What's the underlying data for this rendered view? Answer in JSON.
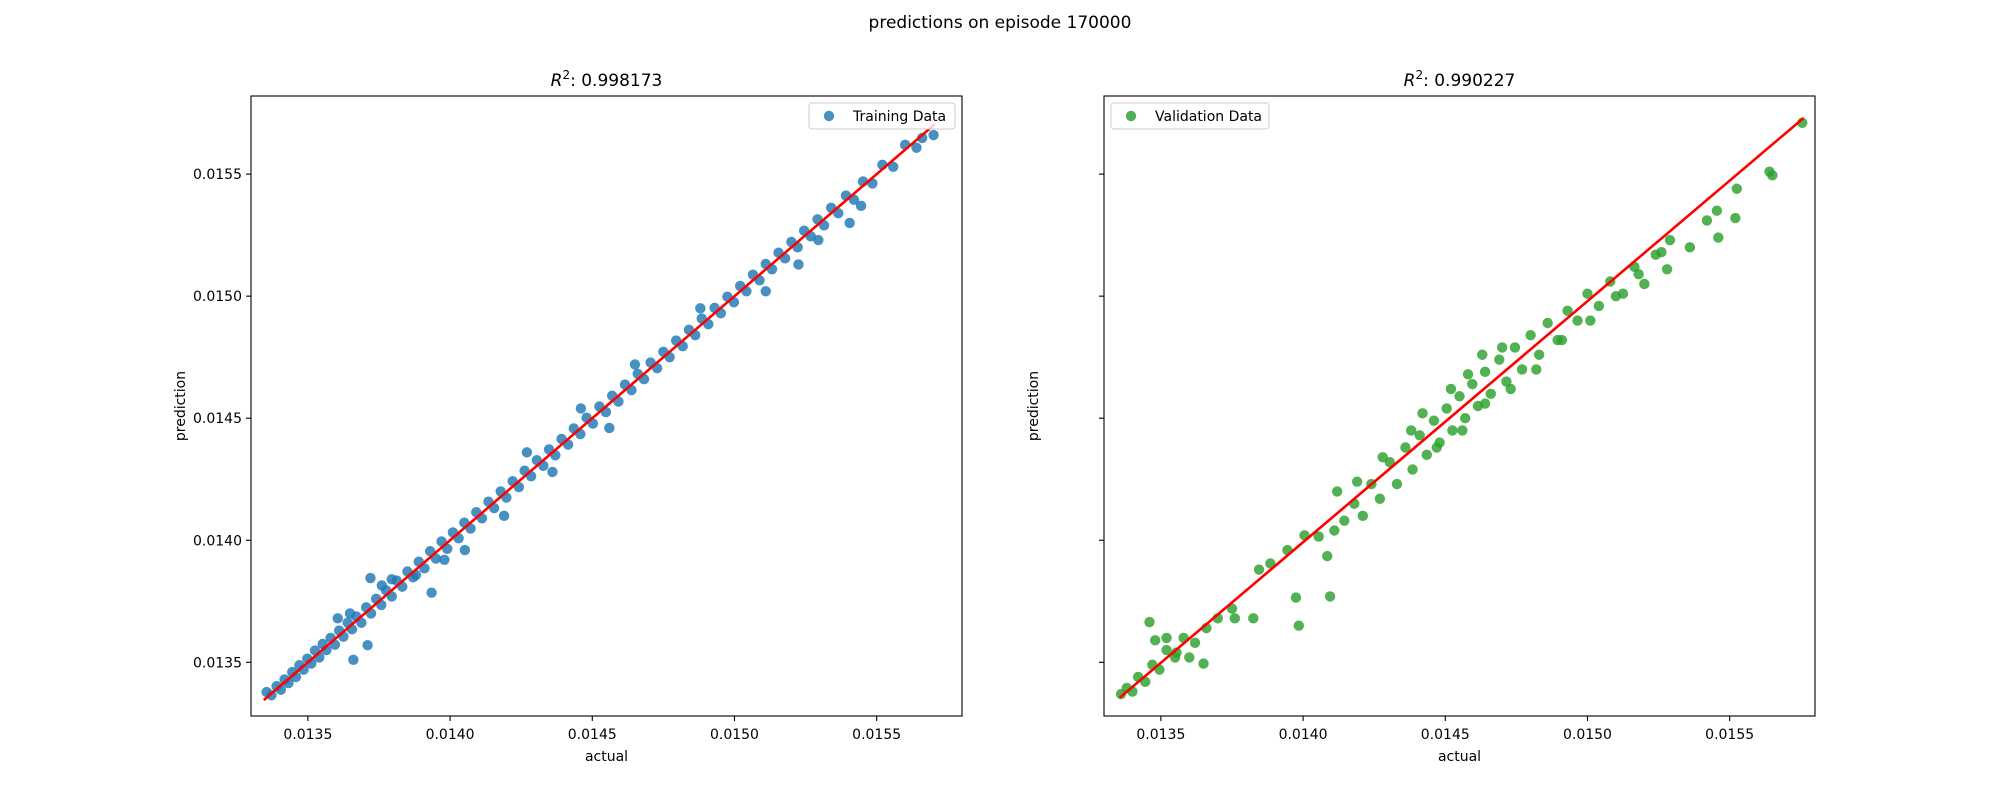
{
  "figure": {
    "suptitle": "predictions on episode 170000"
  },
  "chart_data": [
    {
      "type": "scatter",
      "title_prefix": "R",
      "title_sup": "2",
      "title_value": ": 0.998173",
      "xlabel": "actual",
      "ylabel": "prediction",
      "xlim": [
        0.0133,
        0.0158
      ],
      "ylim": [
        0.01328,
        0.01582
      ],
      "xticks": [
        0.0135,
        0.014,
        0.0145,
        0.015,
        0.0155
      ],
      "xtick_labels": [
        "0.0135",
        "0.0140",
        "0.0145",
        "0.0150",
        "0.0155"
      ],
      "yticks": [
        0.0135,
        0.014,
        0.0145,
        0.015,
        0.0155
      ],
      "ytick_labels": [
        "0.0135",
        "0.0140",
        "0.0145",
        "0.0150",
        "0.0155"
      ],
      "show_ytick_labels": true,
      "legend": {
        "label": "Training Data",
        "position": "top-right"
      },
      "marker_color": "#1f77b4",
      "fit_color": "#ff0000",
      "fit_line": {
        "x": [
          0.013345,
          0.015705
        ],
        "y": [
          0.013345,
          0.015705
        ]
      },
      "points": [
        [
          0.013355,
          0.013378
        ],
        [
          0.013372,
          0.013365
        ],
        [
          0.01339,
          0.013402
        ],
        [
          0.013405,
          0.013388
        ],
        [
          0.013418,
          0.01343
        ],
        [
          0.013432,
          0.013415
        ],
        [
          0.013445,
          0.01346
        ],
        [
          0.013458,
          0.01344
        ],
        [
          0.01347,
          0.013488
        ],
        [
          0.013485,
          0.01347
        ],
        [
          0.013498,
          0.013515
        ],
        [
          0.013512,
          0.013495
        ],
        [
          0.013525,
          0.013548
        ],
        [
          0.01354,
          0.01352
        ],
        [
          0.013552,
          0.013575
        ],
        [
          0.013565,
          0.01355
        ],
        [
          0.01358,
          0.0136
        ],
        [
          0.013595,
          0.013572
        ],
        [
          0.01361,
          0.01363
        ],
        [
          0.013625,
          0.013605
        ],
        [
          0.01364,
          0.013662
        ],
        [
          0.013655,
          0.013635
        ],
        [
          0.01367,
          0.013688
        ],
        [
          0.013688,
          0.013662
        ],
        [
          0.013705,
          0.013725
        ],
        [
          0.013722,
          0.0137
        ],
        [
          0.01374,
          0.01376
        ],
        [
          0.013758,
          0.013735
        ],
        [
          0.013775,
          0.013795
        ],
        [
          0.013795,
          0.01377
        ],
        [
          0.013812,
          0.013835
        ],
        [
          0.013832,
          0.01381
        ],
        [
          0.01385,
          0.013872
        ],
        [
          0.01387,
          0.013848
        ],
        [
          0.01389,
          0.013912
        ],
        [
          0.01391,
          0.013885
        ],
        [
          0.01393,
          0.013955
        ],
        [
          0.01395,
          0.013925
        ],
        [
          0.01397,
          0.013995
        ],
        [
          0.01399,
          0.013965
        ],
        [
          0.01401,
          0.014032
        ],
        [
          0.01403,
          0.014008
        ],
        [
          0.01405,
          0.014072
        ],
        [
          0.014072,
          0.014048
        ],
        [
          0.014092,
          0.014115
        ],
        [
          0.014112,
          0.01409
        ],
        [
          0.014135,
          0.014158
        ],
        [
          0.014155,
          0.014132
        ],
        [
          0.014178,
          0.0142
        ],
        [
          0.014198,
          0.014175
        ],
        [
          0.01422,
          0.014242
        ],
        [
          0.014242,
          0.014218
        ],
        [
          0.014262,
          0.014285
        ],
        [
          0.014285,
          0.014262
        ],
        [
          0.014305,
          0.014328
        ],
        [
          0.014328,
          0.014305
        ],
        [
          0.014348,
          0.014372
        ],
        [
          0.01437,
          0.014348
        ],
        [
          0.014392,
          0.014415
        ],
        [
          0.014415,
          0.014392
        ],
        [
          0.014435,
          0.014458
        ],
        [
          0.014458,
          0.014435
        ],
        [
          0.01448,
          0.014502
        ],
        [
          0.014502,
          0.014478
        ],
        [
          0.014525,
          0.014548
        ],
        [
          0.014548,
          0.014525
        ],
        [
          0.01457,
          0.014592
        ],
        [
          0.014592,
          0.014568
        ],
        [
          0.014615,
          0.014638
        ],
        [
          0.014638,
          0.014615
        ],
        [
          0.01466,
          0.014682
        ],
        [
          0.014682,
          0.01466
        ],
        [
          0.014705,
          0.014728
        ],
        [
          0.014728,
          0.014705
        ],
        [
          0.01475,
          0.014772
        ],
        [
          0.014772,
          0.01475
        ],
        [
          0.014795,
          0.014818
        ],
        [
          0.014818,
          0.014795
        ],
        [
          0.01484,
          0.014862
        ],
        [
          0.014862,
          0.01484
        ],
        [
          0.014885,
          0.014908
        ],
        [
          0.014908,
          0.014885
        ],
        [
          0.01493,
          0.014952
        ],
        [
          0.014952,
          0.01493
        ],
        [
          0.014975,
          0.014998
        ],
        [
          0.014998,
          0.014975
        ],
        [
          0.01502,
          0.015042
        ],
        [
          0.015042,
          0.01502
        ],
        [
          0.015065,
          0.015088
        ],
        [
          0.015088,
          0.015065
        ],
        [
          0.01511,
          0.015132
        ],
        [
          0.015132,
          0.01511
        ],
        [
          0.015155,
          0.015178
        ],
        [
          0.015178,
          0.015155
        ],
        [
          0.0152,
          0.015222
        ],
        [
          0.015222,
          0.0152
        ],
        [
          0.015245,
          0.015268
        ],
        [
          0.015268,
          0.015245
        ],
        [
          0.015292,
          0.015315
        ],
        [
          0.015315,
          0.01529
        ],
        [
          0.01534,
          0.015362
        ],
        [
          0.015365,
          0.01534
        ],
        [
          0.015392,
          0.015412
        ],
        [
          0.01542,
          0.015395
        ],
        [
          0.015452,
          0.01547
        ],
        [
          0.015485,
          0.015462
        ],
        [
          0.01552,
          0.015538
        ],
        [
          0.015558,
          0.01553
        ],
        [
          0.0156,
          0.01562
        ],
        [
          0.01564,
          0.015608
        ],
        [
          0.0157,
          0.01566
        ],
        [
          0.01566,
          0.015648
        ],
        [
          0.01372,
          0.013845
        ],
        [
          0.013795,
          0.01384
        ],
        [
          0.01376,
          0.013815
        ],
        [
          0.01388,
          0.013858
        ],
        [
          0.013935,
          0.013785
        ],
        [
          0.01398,
          0.01392
        ],
        [
          0.014052,
          0.01396
        ],
        [
          0.01366,
          0.01351
        ],
        [
          0.01371,
          0.01357
        ],
        [
          0.013605,
          0.01368
        ],
        [
          0.013648,
          0.0137
        ],
        [
          0.015225,
          0.01513
        ],
        [
          0.015405,
          0.0153
        ],
        [
          0.015445,
          0.01537
        ],
        [
          0.015295,
          0.01523
        ],
        [
          0.01511,
          0.01502
        ],
        [
          0.01456,
          0.01446
        ],
        [
          0.01436,
          0.01428
        ],
        [
          0.01419,
          0.0141
        ],
        [
          0.01427,
          0.01436
        ],
        [
          0.01446,
          0.01454
        ],
        [
          0.01465,
          0.01472
        ],
        [
          0.01488,
          0.01495
        ]
      ]
    },
    {
      "type": "scatter",
      "title_prefix": "R",
      "title_sup": "2",
      "title_value": ": 0.990227",
      "xlabel": "actual",
      "ylabel": "prediction",
      "xlim": [
        0.0133,
        0.0158
      ],
      "ylim": [
        0.01328,
        0.01582
      ],
      "xticks": [
        0.0135,
        0.014,
        0.0145,
        0.015,
        0.0155
      ],
      "xtick_labels": [
        "0.0135",
        "0.0140",
        "0.0145",
        "0.0150",
        "0.0155"
      ],
      "yticks": [
        0.0135,
        0.014,
        0.0145,
        0.015,
        0.0155
      ],
      "ytick_labels": [
        "0.0135",
        "0.0140",
        "0.0145",
        "0.0150",
        "0.0155"
      ],
      "show_ytick_labels": false,
      "legend": {
        "label": "Validation Data",
        "position": "top-left"
      },
      "marker_color": "#2ca02c",
      "fit_color": "#ff0000",
      "fit_line": {
        "x": [
          0.013355,
          0.01576
        ],
        "y": [
          0.013355,
          0.01573
        ]
      },
      "points": [
        [
          0.01336,
          0.01337
        ],
        [
          0.01338,
          0.013395
        ],
        [
          0.0134,
          0.01338
        ],
        [
          0.01342,
          0.01344
        ],
        [
          0.013445,
          0.01342
        ],
        [
          0.01347,
          0.01349
        ],
        [
          0.013495,
          0.01347
        ],
        [
          0.01352,
          0.01355
        ],
        [
          0.01355,
          0.01352
        ],
        [
          0.01358,
          0.0136
        ],
        [
          0.01362,
          0.01358
        ],
        [
          0.01366,
          0.01364
        ],
        [
          0.0137,
          0.01368
        ],
        [
          0.01375,
          0.01372
        ],
        [
          0.01346,
          0.013665
        ],
        [
          0.01348,
          0.01359
        ],
        [
          0.01352,
          0.0136
        ],
        [
          0.013555,
          0.01354
        ],
        [
          0.0136,
          0.01352
        ],
        [
          0.01365,
          0.013495
        ],
        [
          0.01376,
          0.01368
        ],
        [
          0.013825,
          0.01368
        ],
        [
          0.013975,
          0.013765
        ],
        [
          0.013985,
          0.01365
        ],
        [
          0.014095,
          0.01377
        ],
        [
          0.013845,
          0.01388
        ],
        [
          0.013885,
          0.013905
        ],
        [
          0.013945,
          0.01396
        ],
        [
          0.014005,
          0.01402
        ],
        [
          0.014055,
          0.014015
        ],
        [
          0.014085,
          0.013935
        ],
        [
          0.01411,
          0.01404
        ],
        [
          0.014145,
          0.01408
        ],
        [
          0.01418,
          0.01415
        ],
        [
          0.01421,
          0.0141
        ],
        [
          0.01424,
          0.01423
        ],
        [
          0.01427,
          0.01417
        ],
        [
          0.014305,
          0.01432
        ],
        [
          0.01433,
          0.01423
        ],
        [
          0.01436,
          0.01438
        ],
        [
          0.014385,
          0.01429
        ],
        [
          0.01441,
          0.01443
        ],
        [
          0.014435,
          0.01435
        ],
        [
          0.01446,
          0.01449
        ],
        [
          0.01448,
          0.0144
        ],
        [
          0.014505,
          0.01454
        ],
        [
          0.014525,
          0.01445
        ],
        [
          0.01455,
          0.01459
        ],
        [
          0.01457,
          0.0145
        ],
        [
          0.014595,
          0.01464
        ],
        [
          0.014615,
          0.01455
        ],
        [
          0.01464,
          0.01469
        ],
        [
          0.01466,
          0.0146
        ],
        [
          0.01469,
          0.01474
        ],
        [
          0.014715,
          0.01465
        ],
        [
          0.014745,
          0.01479
        ],
        [
          0.01477,
          0.0147
        ],
        [
          0.0148,
          0.01484
        ],
        [
          0.01483,
          0.01476
        ],
        [
          0.01486,
          0.01489
        ],
        [
          0.014895,
          0.01482
        ],
        [
          0.01493,
          0.01494
        ],
        [
          0.014965,
          0.0149
        ],
        [
          0.015,
          0.01501
        ],
        [
          0.01504,
          0.01496
        ],
        [
          0.01508,
          0.01506
        ],
        [
          0.015125,
          0.01501
        ],
        [
          0.015165,
          0.01512
        ],
        [
          0.0152,
          0.01505
        ],
        [
          0.01524,
          0.01517
        ],
        [
          0.01529,
          0.01523
        ],
        [
          0.01528,
          0.01511
        ],
        [
          0.01536,
          0.0152
        ],
        [
          0.01542,
          0.01531
        ],
        [
          0.01546,
          0.01524
        ],
        [
          0.015455,
          0.01535
        ],
        [
          0.01552,
          0.01532
        ],
        [
          0.015525,
          0.01544
        ],
        [
          0.01564,
          0.01551
        ],
        [
          0.01565,
          0.015495
        ],
        [
          0.015755,
          0.01571
        ],
        [
          0.01442,
          0.01452
        ],
        [
          0.01452,
          0.01462
        ],
        [
          0.01458,
          0.01468
        ],
        [
          0.01463,
          0.01476
        ],
        [
          0.0147,
          0.01479
        ],
        [
          0.01447,
          0.01438
        ],
        [
          0.01456,
          0.01445
        ],
        [
          0.01438,
          0.01445
        ],
        [
          0.01428,
          0.01434
        ],
        [
          0.01419,
          0.01424
        ],
        [
          0.01412,
          0.0142
        ],
        [
          0.01464,
          0.01456
        ],
        [
          0.01473,
          0.01462
        ],
        [
          0.01482,
          0.0147
        ],
        [
          0.01491,
          0.01482
        ],
        [
          0.01501,
          0.0149
        ],
        [
          0.0151,
          0.015
        ],
        [
          0.01518,
          0.01509
        ],
        [
          0.01526,
          0.01518
        ]
      ]
    }
  ]
}
